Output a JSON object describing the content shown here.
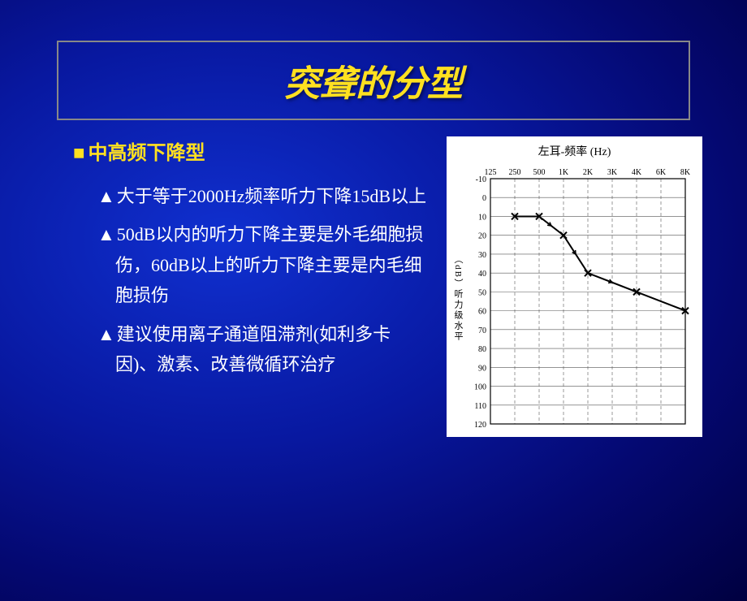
{
  "slide": {
    "title": "突聋的分型",
    "subtitle": "中高频下降型",
    "bullets": [
      "大于等于2000Hz频率听力下降15dB以上",
      "50dB以内的听力下降主要是外毛细胞损伤，60dB以上的听力下降主要是内毛细胞损伤",
      "建议使用离子通道阻滞剂(如利多卡因)、激素、改善微循环治疗"
    ]
  },
  "chart": {
    "title": "左耳-频率 (Hz)",
    "ylabel": "（dB）听力级水平",
    "x_labels": [
      "125",
      "250",
      "500",
      "1K",
      "2K",
      "3K",
      "4K",
      "6K",
      "8K"
    ],
    "y_min": -10,
    "y_max": 120,
    "y_step": 10,
    "grid_color": "#555555",
    "axis_color": "#000000",
    "text_color": "#000000",
    "background_color": "#ffffff",
    "line_color": "#000000",
    "line_width": 2,
    "marker": "x",
    "marker_size": 8,
    "font_size_labels": 10,
    "points": [
      {
        "x": "250",
        "y": 10
      },
      {
        "x": "500",
        "y": 10
      },
      {
        "x": "1K",
        "y": 20
      },
      {
        "x": "2K",
        "y": 40
      },
      {
        "x": "4K",
        "y": 50
      },
      {
        "x": "8K",
        "y": 60
      }
    ],
    "arrows_between": [
      {
        "from": "500",
        "to": "1K"
      },
      {
        "from": "1K",
        "to": "2K"
      },
      {
        "from": "2K",
        "to": "4K"
      }
    ]
  },
  "colors": {
    "title_color": "#ffe020",
    "subtitle_color": "#ffe020",
    "text_color": "#ffffff",
    "bg_gradient_inner": "#1030d0",
    "bg_gradient_outer": "#000040"
  }
}
